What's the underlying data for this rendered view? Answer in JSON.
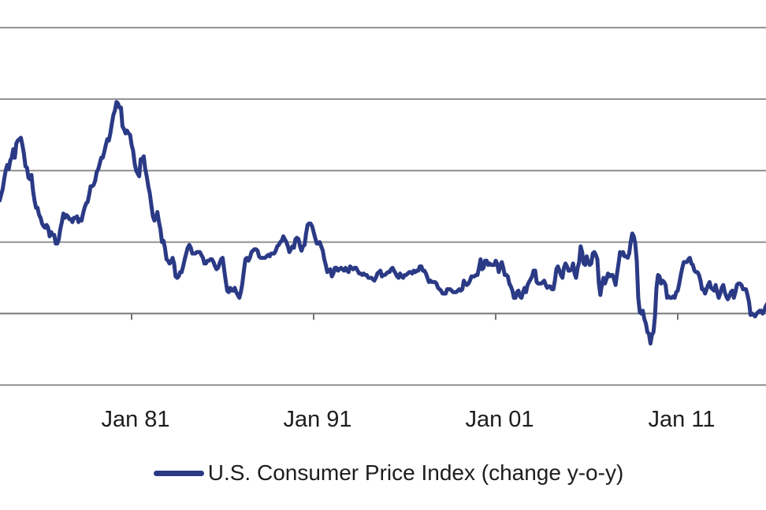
{
  "chart_data": {
    "type": "line",
    "title": "",
    "grid": true,
    "legend_position": "bottom-center",
    "x_ticks": [
      {
        "label": "Jan 81",
        "year": 1981
      },
      {
        "label": "Jan 91",
        "year": 1991
      },
      {
        "label": "Jan 01",
        "year": 2001
      },
      {
        "label": "Jan 11",
        "year": 2011
      }
    ],
    "y_gridline_values": [
      20,
      15,
      10,
      5,
      0,
      -5
    ],
    "ylim_visible": [
      -5.5,
      21
    ],
    "x_range_visible": {
      "start": "Oct 1973",
      "end": "Dec 2015"
    },
    "y_unit": "percent (y-axis labels cropped out of view)",
    "series": [
      {
        "name": "U.S. Consumer Price Index (change y-o-y)",
        "frequency": "monthly",
        "start_year": 1973,
        "start_month": 10,
        "values": [
          7.9,
          8.3,
          8.7,
          9.4,
          10.0,
          10.4,
          10.1,
          10.7,
          10.9,
          11.5,
          10.9,
          11.9,
          12.1,
          12.2,
          12.3,
          11.8,
          11.2,
          10.3,
          10.2,
          9.5,
          9.4,
          9.7,
          8.6,
          7.9,
          7.4,
          7.4,
          6.9,
          6.7,
          6.3,
          6.1,
          6.0,
          6.2,
          6.0,
          5.4,
          5.7,
          5.5,
          5.5,
          4.9,
          4.9,
          5.2,
          5.9,
          6.4,
          7.0,
          6.7,
          6.9,
          6.8,
          6.6,
          6.6,
          6.4,
          6.7,
          6.7,
          6.8,
          6.4,
          6.6,
          6.5,
          7.0,
          7.4,
          7.7,
          7.8,
          8.3,
          8.9,
          8.9,
          9.0,
          9.3,
          9.9,
          10.1,
          10.5,
          10.9,
          10.9,
          11.3,
          11.8,
          12.2,
          12.1,
          12.6,
          13.3,
          13.9,
          14.2,
          14.8,
          14.7,
          14.4,
          14.4,
          13.1,
          12.9,
          12.6,
          12.8,
          12.6,
          12.5,
          11.8,
          11.4,
          10.5,
          10.0,
          9.8,
          9.6,
          10.8,
          10.8,
          11.0,
          10.1,
          9.6,
          8.9,
          8.4,
          7.6,
          6.8,
          6.5,
          6.7,
          7.1,
          6.4,
          5.9,
          5.0,
          5.1,
          4.6,
          3.8,
          3.7,
          3.5,
          3.6,
          3.9,
          3.5,
          2.6,
          2.5,
          2.6,
          2.9,
          2.9,
          3.3,
          3.8,
          4.2,
          4.6,
          4.8,
          4.6,
          4.2,
          4.2,
          4.2,
          4.3,
          4.3,
          4.3,
          4.1,
          3.9,
          3.5,
          3.5,
          3.7,
          3.7,
          3.8,
          3.8,
          3.6,
          3.3,
          3.1,
          3.2,
          3.5,
          3.8,
          3.9,
          3.1,
          2.3,
          1.6,
          1.5,
          1.8,
          1.6,
          1.6,
          1.8,
          1.5,
          1.3,
          1.1,
          1.5,
          2.1,
          3.0,
          3.8,
          3.9,
          3.7,
          3.9,
          4.3,
          4.4,
          4.5,
          4.5,
          4.4,
          4.0,
          3.9,
          3.9,
          3.9,
          3.9,
          4.0,
          4.1,
          4.0,
          4.2,
          4.2,
          4.2,
          4.4,
          4.7,
          4.8,
          5.0,
          5.1,
          5.4,
          5.2,
          5.0,
          4.7,
          4.3,
          4.5,
          4.7,
          4.6,
          5.2,
          5.3,
          5.2,
          4.7,
          4.4,
          4.7,
          4.8,
          5.6,
          6.2,
          6.3,
          6.3,
          6.1,
          5.7,
          5.3,
          4.9,
          4.9,
          5.0,
          4.7,
          4.4,
          3.8,
          3.4,
          2.9,
          3.0,
          3.1,
          2.6,
          2.8,
          3.2,
          3.2,
          3.0,
          3.1,
          3.2,
          3.1,
          3.0,
          3.2,
          3.0,
          2.9,
          3.3,
          3.2,
          3.1,
          3.2,
          3.2,
          3.0,
          2.8,
          2.8,
          2.7,
          2.8,
          2.7,
          2.7,
          2.5,
          2.5,
          2.5,
          2.4,
          2.3,
          2.5,
          2.8,
          2.9,
          3.0,
          2.6,
          2.7,
          2.7,
          2.8,
          2.9,
          2.9,
          3.1,
          3.2,
          3.0,
          2.8,
          2.6,
          2.5,
          2.8,
          2.6,
          2.5,
          2.7,
          2.7,
          2.8,
          2.9,
          2.9,
          2.8,
          3.0,
          2.9,
          3.0,
          3.0,
          3.3,
          3.3,
          3.0,
          3.0,
          2.8,
          2.5,
          2.2,
          2.3,
          2.2,
          2.2,
          2.2,
          2.1,
          1.8,
          1.7,
          1.6,
          1.4,
          1.4,
          1.4,
          1.7,
          1.7,
          1.7,
          1.6,
          1.5,
          1.5,
          1.5,
          1.6,
          1.7,
          1.6,
          1.7,
          2.3,
          2.1,
          2.0,
          2.1,
          2.3,
          2.6,
          2.6,
          2.6,
          2.7,
          2.7,
          3.2,
          3.8,
          3.1,
          3.2,
          3.7,
          3.7,
          3.4,
          3.5,
          3.4,
          3.4,
          3.4,
          3.7,
          3.5,
          2.9,
          3.3,
          3.6,
          3.2,
          2.7,
          2.7,
          2.6,
          2.1,
          1.9,
          1.6,
          1.1,
          1.1,
          1.5,
          1.6,
          1.2,
          1.1,
          1.5,
          1.8,
          1.5,
          2.0,
          2.2,
          2.4,
          2.6,
          3.0,
          3.0,
          2.2,
          2.1,
          2.1,
          2.1,
          2.2,
          2.3,
          2.0,
          1.8,
          1.9,
          1.9,
          1.7,
          1.7,
          2.3,
          3.1,
          3.3,
          3.0,
          2.7,
          2.5,
          3.2,
          3.5,
          3.3,
          3.0,
          3.0,
          3.1,
          3.5,
          2.8,
          2.5,
          3.2,
          3.6,
          4.7,
          4.3,
          3.5,
          3.4,
          4.0,
          3.6,
          3.4,
          3.5,
          4.2,
          4.3,
          4.1,
          3.8,
          2.1,
          1.3,
          2.0,
          2.5,
          2.1,
          2.4,
          2.8,
          2.6,
          2.7,
          2.7,
          2.4,
          2.0,
          2.8,
          3.5,
          4.3,
          4.1,
          4.3,
          4.0,
          4.0,
          3.9,
          4.2,
          5.0,
          5.6,
          5.4,
          4.9,
          3.7,
          1.1,
          0.1,
          0.0,
          0.2,
          -0.4,
          -0.7,
          -1.3,
          -1.4,
          -2.1,
          -1.5,
          -1.3,
          -0.2,
          1.8,
          2.7,
          2.6,
          2.1,
          2.3,
          2.2,
          2.0,
          1.1,
          1.2,
          1.1,
          1.1,
          1.2,
          1.1,
          1.5,
          1.6,
          2.1,
          2.7,
          3.2,
          3.6,
          3.6,
          3.6,
          3.8,
          3.9,
          3.5,
          3.4,
          3.0,
          2.9,
          2.9,
          2.7,
          2.3,
          1.7,
          1.7,
          1.4,
          1.7,
          2.0,
          2.2,
          1.8,
          1.7,
          1.6,
          2.0,
          1.5,
          1.1,
          1.4,
          1.8,
          2.0,
          1.5,
          1.2,
          1.0,
          1.2,
          1.5,
          1.6,
          1.1,
          1.5,
          2.0,
          2.1,
          2.1,
          2.0,
          1.7,
          1.7,
          1.7,
          1.3,
          0.8,
          -0.1,
          0.0,
          -0.1,
          -0.2,
          0.0,
          0.1,
          0.2,
          0.2,
          0.0,
          0.2,
          0.5,
          0.7
        ]
      }
    ]
  },
  "colors": {
    "line": "#2b3a85",
    "gridline": "#8f8f8f",
    "axis": "#767676",
    "text": "#1d1d1d",
    "background": "#ffffff"
  }
}
